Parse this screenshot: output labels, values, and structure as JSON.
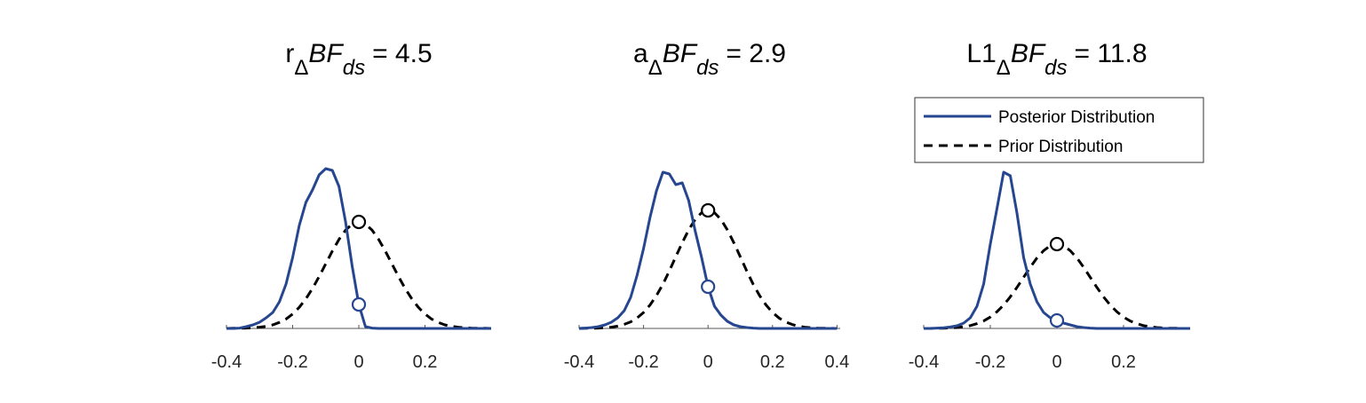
{
  "chart_data": [
    {
      "type": "line",
      "title": [
        "r",
        "Δ",
        "BF",
        "ds",
        "= 4.5"
      ],
      "x": [
        -0.4,
        -0.38,
        -0.36,
        -0.34,
        -0.32,
        -0.3,
        -0.28,
        -0.26,
        -0.24,
        -0.22,
        -0.2,
        -0.18,
        -0.16,
        -0.14,
        -0.12,
        -0.1,
        -0.08,
        -0.06,
        -0.04,
        -0.02,
        0,
        0.02,
        0.04,
        0.06,
        0.08,
        0.1,
        0.12,
        0.14,
        0.16,
        0.18,
        0.2,
        0.22,
        0.24,
        0.26,
        0.28,
        0.3,
        0.32,
        0.34,
        0.36,
        0.38,
        0.4
      ],
      "series": [
        {
          "name": "Posterior Distribution",
          "color": "#26468f",
          "style": "solid",
          "values": [
            0,
            0,
            0.02,
            0.1,
            0.2,
            0.35,
            0.6,
            0.9,
            1.5,
            2.5,
            4,
            5.8,
            7.1,
            7.8,
            8.65,
            9,
            8.9,
            8,
            6,
            3.5,
            1.35,
            0.1,
            0.02,
            0,
            0,
            0,
            0,
            0,
            0,
            0,
            0,
            0,
            0,
            0,
            0,
            0,
            0,
            0,
            0,
            0,
            0
          ]
        },
        {
          "name": "Prior Distribution",
          "color": "#000000",
          "style": "dashed",
          "values": [
            0,
            0.01,
            0.01,
            0.02,
            0.04,
            0.07,
            0.12,
            0.2,
            0.34,
            0.53,
            0.81,
            1.19,
            1.67,
            2.25,
            2.92,
            3.64,
            4.36,
            5.01,
            5.54,
            5.88,
            6,
            5.88,
            5.54,
            5.01,
            4.36,
            3.64,
            2.92,
            2.25,
            1.67,
            1.19,
            0.81,
            0.53,
            0.34,
            0.2,
            0.12,
            0.07,
            0.04,
            0.02,
            0.01,
            0.01,
            0
          ]
        }
      ],
      "mark_x": 0,
      "xlim": [
        -0.4,
        0.4
      ],
      "xticks": [
        -0.4,
        -0.2,
        0,
        0.2
      ],
      "ylim": [
        0,
        10
      ]
    },
    {
      "type": "line",
      "title": [
        "a",
        "Δ",
        "BF",
        "ds",
        "= 2.9"
      ],
      "x": [
        -0.4,
        -0.38,
        -0.36,
        -0.34,
        -0.32,
        -0.3,
        -0.28,
        -0.26,
        -0.24,
        -0.22,
        -0.2,
        -0.18,
        -0.16,
        -0.14,
        -0.12,
        -0.1,
        -0.08,
        -0.06,
        -0.04,
        -0.02,
        0,
        0.02,
        0.04,
        0.06,
        0.08,
        0.1,
        0.12,
        0.14,
        0.16,
        0.18,
        0.2,
        0.22,
        0.24,
        0.26,
        0.28,
        0.3,
        0.32,
        0.34,
        0.36,
        0.38,
        0.4
      ],
      "series": [
        {
          "name": "Posterior Distribution",
          "color": "#26468f",
          "style": "solid",
          "values": [
            0,
            0.02,
            0.05,
            0.1,
            0.2,
            0.35,
            0.6,
            1,
            1.75,
            3,
            4.5,
            6.25,
            7.75,
            8.8,
            8.7,
            8.1,
            8.2,
            7.2,
            5.5,
            4,
            2.35,
            1.25,
            0.75,
            0.4,
            0.2,
            0.1,
            0.05,
            0.02,
            0,
            0,
            0,
            0,
            0,
            0,
            0,
            0,
            0,
            0,
            0,
            0,
            0
          ]
        },
        {
          "name": "Prior Distribution",
          "color": "#000000",
          "style": "dashed",
          "values": [
            0,
            0.01,
            0.01,
            0.02,
            0.04,
            0.07,
            0.13,
            0.23,
            0.37,
            0.59,
            0.9,
            1.32,
            1.85,
            2.49,
            3.24,
            4.04,
            4.83,
            5.55,
            6.14,
            6.52,
            6.65,
            6.52,
            6.14,
            5.55,
            4.83,
            4.04,
            3.24,
            2.49,
            1.85,
            1.32,
            0.9,
            0.59,
            0.37,
            0.23,
            0.13,
            0.07,
            0.04,
            0.02,
            0.01,
            0.01,
            0
          ]
        }
      ],
      "mark_x": 0,
      "xlim": [
        -0.4,
        0.41
      ],
      "xticks": [
        -0.4,
        -0.2,
        0,
        0.2,
        0.4
      ],
      "ylim": [
        0,
        10
      ]
    },
    {
      "type": "line",
      "title": [
        "L1",
        "Δ",
        "BF",
        "ds",
        "= 11.8"
      ],
      "x": [
        -0.4,
        -0.38,
        -0.36,
        -0.34,
        -0.32,
        -0.3,
        -0.28,
        -0.26,
        -0.24,
        -0.22,
        -0.2,
        -0.18,
        -0.16,
        -0.14,
        -0.12,
        -0.1,
        -0.08,
        -0.06,
        -0.04,
        -0.02,
        0,
        0.02,
        0.04,
        0.06,
        0.08,
        0.1,
        0.12,
        0.14,
        0.16,
        0.18,
        0.2,
        0.22,
        0.24,
        0.26,
        0.28,
        0.3,
        0.32,
        0.34,
        0.36,
        0.38,
        0.4
      ],
      "series": [
        {
          "name": "Posterior Distribution",
          "color": "#26468f",
          "style": "solid",
          "values": [
            0,
            0,
            0.02,
            0.04,
            0.08,
            0.15,
            0.3,
            0.6,
            1.25,
            2.5,
            4.75,
            6.75,
            8.8,
            8.6,
            6.5,
            4,
            2.5,
            1.5,
            0.9,
            0.6,
            0.45,
            0.3,
            0.2,
            0.1,
            0.05,
            0.02,
            0,
            0,
            0,
            0,
            0,
            0,
            0,
            0,
            0,
            0,
            0,
            0,
            0,
            0,
            0
          ]
        },
        {
          "name": "Prior Distribution",
          "color": "#000000",
          "style": "dashed",
          "values": [
            0,
            0,
            0.01,
            0.01,
            0.03,
            0.05,
            0.1,
            0.16,
            0.27,
            0.42,
            0.64,
            0.94,
            1.32,
            1.78,
            2.31,
            2.88,
            3.45,
            3.97,
            4.38,
            4.66,
            4.75,
            4.66,
            4.38,
            3.97,
            3.45,
            2.88,
            2.31,
            1.78,
            1.32,
            0.94,
            0.64,
            0.42,
            0.27,
            0.16,
            0.1,
            0.05,
            0.03,
            0.01,
            0.01,
            0,
            0
          ]
        }
      ],
      "mark_x": 0,
      "xlim": [
        -0.4,
        0.4
      ],
      "xticks": [
        -0.4,
        -0.2,
        0,
        0.2
      ],
      "ylim": [
        0,
        10
      ],
      "legend": "top"
    }
  ]
}
